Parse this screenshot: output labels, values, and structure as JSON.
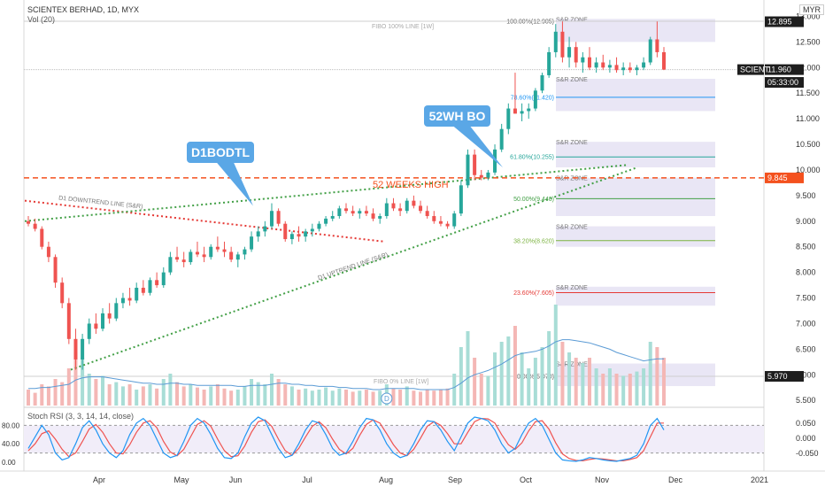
{
  "header": {
    "symbol_line": "SCIENTEX BERHAD, 1D, MYX",
    "volume_line": "Vol (20)",
    "currency": "MYR"
  },
  "colors": {
    "up": "#26a69a",
    "down": "#ef5350",
    "up_light": "#a8ddd6",
    "down_light": "#f4b7b5",
    "zone_fill": "#e9e6f5",
    "downtrend": "#e53935",
    "uptrend": "#43a047",
    "week52": "#f4511e",
    "callout": "#5aa7e6",
    "rsi_k": "#2196f3",
    "rsi_d": "#ef5350"
  },
  "annotations": {
    "callout_1": "D1BODTL",
    "callout_2": "52WH BO",
    "week52_label": "52 WEEKS HIGH",
    "downtrend_label": "D1 DOWNTREND LINE (S&R)",
    "uptrend_label": "D1 UPTREND LINE (S&R)",
    "fibo_top_label": "FIBO 100% LINE [1W]",
    "fibo_bottom_label": "FIBO 0% LINE [1W]",
    "zone_label": "S&R ZONE",
    "dividend_marker": "D"
  },
  "chart_data": {
    "type": "candlestick",
    "y_axis": {
      "ticks": [
        "13.000",
        "12.500",
        "12.000",
        "11.500",
        "11.000",
        "10.500",
        "10.000",
        "9.500",
        "9.000",
        "8.500",
        "8.000",
        "7.500",
        "7.000",
        "6.500",
        "6.000",
        "5.500"
      ],
      "range": [
        5.4,
        13.25
      ]
    },
    "x_axis": {
      "ticks": [
        "Apr",
        "May",
        "Jun",
        "Jul",
        "Aug",
        "Sep",
        "Oct",
        "Nov",
        "Dec",
        "2021"
      ]
    },
    "price_badges": [
      {
        "label": "12.895",
        "value": 12.895,
        "style": "dark"
      },
      {
        "label": "11.960",
        "value": 11.96,
        "style": "dark"
      },
      {
        "label": "05:33:00",
        "value": 11.71,
        "style": "dark"
      },
      {
        "label": "SCIENT",
        "value": 11.96,
        "style": "name"
      },
      {
        "label": "9.845",
        "value": 9.845,
        "style": "orange"
      },
      {
        "label": "5.970",
        "value": 5.97,
        "style": "dark"
      }
    ],
    "fibonacci": [
      {
        "label": "100.00%(12.905)",
        "value": 12.905,
        "color": "#555555"
      },
      {
        "label": "78.60%(11.420)",
        "value": 11.42,
        "color": "#2196f3"
      },
      {
        "label": "61.80%(10.255)",
        "value": 10.255,
        "color": "#26a69a"
      },
      {
        "label": "50.00%(9.440)",
        "value": 9.44,
        "color": "#43a047"
      },
      {
        "label": "38.20%(8.620)",
        "value": 8.62,
        "color": "#7cb342"
      },
      {
        "label": "23.60%(7.605)",
        "value": 7.605,
        "color": "#e53935"
      },
      {
        "label": "0.00%(5.970)",
        "value": 5.97,
        "color": "#555555"
      }
    ],
    "sr_zones": [
      {
        "low": 12.5,
        "high": 12.95
      },
      {
        "low": 11.15,
        "high": 11.78
      },
      {
        "low": 10.05,
        "high": 10.55
      },
      {
        "low": 9.1,
        "high": 9.85
      },
      {
        "low": 8.5,
        "high": 8.9
      },
      {
        "low": 7.35,
        "high": 7.72
      },
      {
        "low": 5.78,
        "high": 6.22
      }
    ],
    "week52_high": 9.845,
    "candles": [
      [
        9.0,
        9.1,
        8.9,
        8.95
      ],
      [
        8.95,
        9.05,
        8.8,
        8.85
      ],
      [
        8.85,
        8.9,
        8.45,
        8.5
      ],
      [
        8.5,
        8.6,
        8.2,
        8.3
      ],
      [
        8.3,
        8.35,
        7.7,
        7.8
      ],
      [
        7.8,
        7.9,
        7.3,
        7.4
      ],
      [
        7.4,
        7.5,
        6.6,
        6.7
      ],
      [
        6.7,
        6.9,
        6.1,
        6.3
      ],
      [
        6.3,
        6.8,
        6.1,
        6.7
      ],
      [
        6.7,
        7.1,
        6.6,
        7.0
      ],
      [
        7.0,
        7.2,
        6.8,
        6.9
      ],
      [
        6.9,
        7.3,
        6.85,
        7.2
      ],
      [
        7.2,
        7.4,
        7.0,
        7.1
      ],
      [
        7.1,
        7.5,
        7.05,
        7.4
      ],
      [
        7.4,
        7.6,
        7.3,
        7.5
      ],
      [
        7.5,
        7.7,
        7.35,
        7.45
      ],
      [
        7.45,
        7.8,
        7.4,
        7.7
      ],
      [
        7.7,
        7.85,
        7.55,
        7.6
      ],
      [
        7.6,
        7.9,
        7.55,
        7.85
      ],
      [
        7.85,
        8.0,
        7.7,
        7.75
      ],
      [
        7.75,
        8.1,
        7.7,
        8.0
      ],
      [
        8.0,
        8.4,
        7.95,
        8.3
      ],
      [
        8.3,
        8.5,
        8.2,
        8.25
      ],
      [
        8.25,
        8.4,
        8.1,
        8.2
      ],
      [
        8.2,
        8.45,
        8.15,
        8.4
      ],
      [
        8.4,
        8.6,
        8.3,
        8.35
      ],
      [
        8.35,
        8.5,
        8.2,
        8.3
      ],
      [
        8.3,
        8.55,
        8.25,
        8.5
      ],
      [
        8.5,
        8.7,
        8.4,
        8.45
      ],
      [
        8.45,
        8.6,
        8.3,
        8.4
      ],
      [
        8.4,
        8.5,
        8.2,
        8.25
      ],
      [
        8.25,
        8.4,
        8.1,
        8.35
      ],
      [
        8.35,
        8.5,
        8.25,
        8.45
      ],
      [
        8.45,
        8.8,
        8.4,
        8.7
      ],
      [
        8.7,
        8.9,
        8.6,
        8.8
      ],
      [
        8.8,
        9.0,
        8.7,
        8.9
      ],
      [
        8.9,
        9.35,
        8.85,
        9.2
      ],
      [
        9.2,
        9.25,
        8.9,
        8.95
      ],
      [
        8.95,
        9.0,
        8.6,
        8.65
      ],
      [
        8.65,
        8.8,
        8.55,
        8.75
      ],
      [
        8.75,
        8.9,
        8.6,
        8.7
      ],
      [
        8.7,
        8.85,
        8.6,
        8.8
      ],
      [
        8.8,
        8.95,
        8.7,
        8.85
      ],
      [
        8.85,
        9.0,
        8.8,
        8.95
      ],
      [
        8.95,
        9.1,
        8.9,
        9.05
      ],
      [
        9.05,
        9.2,
        9.0,
        9.1
      ],
      [
        9.1,
        9.3,
        9.05,
        9.25
      ],
      [
        9.25,
        9.35,
        9.15,
        9.2
      ],
      [
        9.2,
        9.3,
        9.1,
        9.15
      ],
      [
        9.15,
        9.25,
        9.05,
        9.2
      ],
      [
        9.2,
        9.3,
        9.1,
        9.15
      ],
      [
        9.15,
        9.25,
        9.0,
        9.05
      ],
      [
        9.05,
        9.15,
        8.95,
        9.1
      ],
      [
        9.1,
        9.45,
        9.05,
        9.35
      ],
      [
        9.35,
        9.45,
        9.2,
        9.25
      ],
      [
        9.25,
        9.35,
        9.1,
        9.2
      ],
      [
        9.2,
        9.45,
        9.15,
        9.4
      ],
      [
        9.4,
        9.5,
        9.25,
        9.3
      ],
      [
        9.3,
        9.4,
        9.15,
        9.2
      ],
      [
        9.2,
        9.3,
        9.05,
        9.1
      ],
      [
        9.1,
        9.2,
        8.95,
        9.0
      ],
      [
        9.0,
        9.1,
        8.9,
        8.95
      ],
      [
        8.95,
        9.0,
        8.85,
        8.9
      ],
      [
        8.9,
        9.2,
        8.85,
        9.15
      ],
      [
        9.15,
        9.8,
        9.1,
        9.7
      ],
      [
        9.7,
        10.4,
        9.65,
        10.3
      ],
      [
        10.3,
        10.4,
        9.8,
        9.9
      ],
      [
        9.9,
        10.0,
        9.8,
        9.85
      ],
      [
        9.85,
        10.0,
        9.8,
        9.95
      ],
      [
        9.95,
        10.5,
        9.9,
        10.4
      ],
      [
        10.4,
        10.9,
        10.35,
        10.8
      ],
      [
        10.8,
        11.3,
        10.7,
        11.2
      ],
      [
        11.2,
        11.9,
        11.1,
        11.1
      ],
      [
        11.1,
        11.3,
        10.95,
        11.15
      ],
      [
        11.15,
        11.3,
        11.0,
        11.2
      ],
      [
        11.2,
        11.6,
        11.15,
        11.55
      ],
      [
        11.55,
        11.9,
        11.5,
        11.85
      ],
      [
        11.85,
        12.4,
        11.8,
        12.3
      ],
      [
        12.3,
        12.85,
        12.2,
        12.7
      ],
      [
        12.7,
        12.9,
        12.1,
        12.2
      ],
      [
        12.2,
        12.6,
        12.0,
        12.4
      ],
      [
        12.4,
        12.5,
        12.0,
        12.1
      ],
      [
        12.1,
        12.3,
        11.9,
        12.2
      ],
      [
        12.2,
        12.4,
        11.95,
        12.0
      ],
      [
        12.0,
        12.2,
        11.9,
        12.1
      ],
      [
        12.1,
        12.25,
        11.95,
        12.0
      ],
      [
        12.0,
        12.15,
        11.9,
        12.05
      ],
      [
        12.05,
        12.2,
        11.9,
        11.95
      ],
      [
        11.95,
        12.1,
        11.85,
        12.0
      ],
      [
        12.0,
        12.1,
        11.9,
        11.95
      ],
      [
        11.95,
        12.05,
        11.85,
        12.0
      ],
      [
        12.0,
        12.2,
        11.95,
        12.1
      ],
      [
        12.1,
        12.6,
        12.05,
        12.55
      ],
      [
        12.55,
        12.9,
        12.2,
        12.3
      ],
      [
        12.3,
        12.4,
        11.95,
        11.96
      ]
    ],
    "volume": [
      0.15,
      0.12,
      0.2,
      0.18,
      0.25,
      0.22,
      0.35,
      0.5,
      0.45,
      0.3,
      0.25,
      0.28,
      0.2,
      0.22,
      0.18,
      0.2,
      0.15,
      0.18,
      0.2,
      0.16,
      0.25,
      0.3,
      0.22,
      0.18,
      0.2,
      0.17,
      0.15,
      0.18,
      0.2,
      0.16,
      0.14,
      0.15,
      0.18,
      0.25,
      0.22,
      0.2,
      0.3,
      0.25,
      0.2,
      0.18,
      0.15,
      0.16,
      0.14,
      0.15,
      0.17,
      0.14,
      0.16,
      0.15,
      0.13,
      0.14,
      0.15,
      0.13,
      0.14,
      0.2,
      0.16,
      0.15,
      0.18,
      0.14,
      0.13,
      0.15,
      0.14,
      0.15,
      0.16,
      0.3,
      0.55,
      0.7,
      0.45,
      0.3,
      0.28,
      0.5,
      0.6,
      0.65,
      0.75,
      0.5,
      0.35,
      0.45,
      0.55,
      0.7,
      0.95,
      0.6,
      0.5,
      0.45,
      0.4,
      0.45,
      0.35,
      0.3,
      0.35,
      0.3,
      0.28,
      0.3,
      0.32,
      0.35,
      0.6,
      0.55,
      0.45
    ],
    "volume_ma": [
      0.16,
      0.16,
      0.17,
      0.17,
      0.18,
      0.19,
      0.2,
      0.24,
      0.26,
      0.27,
      0.27,
      0.27,
      0.26,
      0.25,
      0.24,
      0.23,
      0.22,
      0.21,
      0.21,
      0.2,
      0.2,
      0.21,
      0.21,
      0.2,
      0.2,
      0.19,
      0.19,
      0.19,
      0.19,
      0.19,
      0.19,
      0.18,
      0.18,
      0.19,
      0.19,
      0.19,
      0.2,
      0.21,
      0.21,
      0.2,
      0.2,
      0.19,
      0.19,
      0.18,
      0.18,
      0.18,
      0.17,
      0.17,
      0.16,
      0.16,
      0.16,
      0.15,
      0.15,
      0.16,
      0.16,
      0.16,
      0.16,
      0.16,
      0.15,
      0.15,
      0.15,
      0.15,
      0.15,
      0.17,
      0.21,
      0.26,
      0.29,
      0.31,
      0.33,
      0.36,
      0.39,
      0.43,
      0.47,
      0.49,
      0.5,
      0.51,
      0.53,
      0.56,
      0.6,
      0.62,
      0.62,
      0.61,
      0.6,
      0.59,
      0.57,
      0.55,
      0.53,
      0.5,
      0.48,
      0.46,
      0.44,
      0.42,
      0.43,
      0.44,
      0.44
    ],
    "dividend_index": 53,
    "stoch_rsi": {
      "label": "Stoch RSI (3, 3, 14, 14, close)",
      "y_ticks_left": [
        "80.00",
        "40.00",
        "0.00"
      ],
      "y_ticks_right": [
        "0.050",
        "0.000",
        "-0.050"
      ],
      "upper_band": 80,
      "lower_band": 20,
      "k": [
        30,
        55,
        80,
        60,
        20,
        5,
        10,
        40,
        75,
        90,
        70,
        40,
        20,
        10,
        25,
        60,
        85,
        95,
        80,
        50,
        20,
        10,
        15,
        45,
        80,
        95,
        85,
        60,
        30,
        10,
        8,
        20,
        55,
        85,
        98,
        90,
        60,
        30,
        10,
        15,
        40,
        70,
        90,
        85,
        60,
        30,
        15,
        20,
        45,
        75,
        95,
        92,
        70,
        40,
        20,
        10,
        15,
        40,
        70,
        90,
        88,
        70,
        45,
        25,
        55,
        85,
        98,
        95,
        90,
        70,
        40,
        20,
        30,
        60,
        85,
        95,
        80,
        50,
        20,
        5,
        3,
        2,
        5,
        10,
        8,
        5,
        3,
        2,
        5,
        8,
        15,
        40,
        80,
        95,
        70
      ],
      "d": [
        25,
        40,
        62,
        68,
        50,
        28,
        12,
        20,
        45,
        72,
        82,
        65,
        40,
        20,
        18,
        38,
        65,
        85,
        90,
        75,
        45,
        22,
        14,
        28,
        55,
        82,
        90,
        78,
        50,
        25,
        12,
        14,
        35,
        65,
        88,
        92,
        78,
        50,
        25,
        15,
        30,
        55,
        78,
        88,
        75,
        50,
        28,
        18,
        30,
        58,
        82,
        92,
        85,
        62,
        38,
        20,
        14,
        28,
        52,
        78,
        88,
        80,
        62,
        40,
        40,
        65,
        88,
        95,
        94,
        85,
        60,
        38,
        28,
        42,
        68,
        88,
        90,
        72,
        42,
        18,
        8,
        4,
        3,
        6,
        8,
        7,
        5,
        3,
        3,
        6,
        10,
        25,
        55,
        85,
        85
      ]
    }
  }
}
